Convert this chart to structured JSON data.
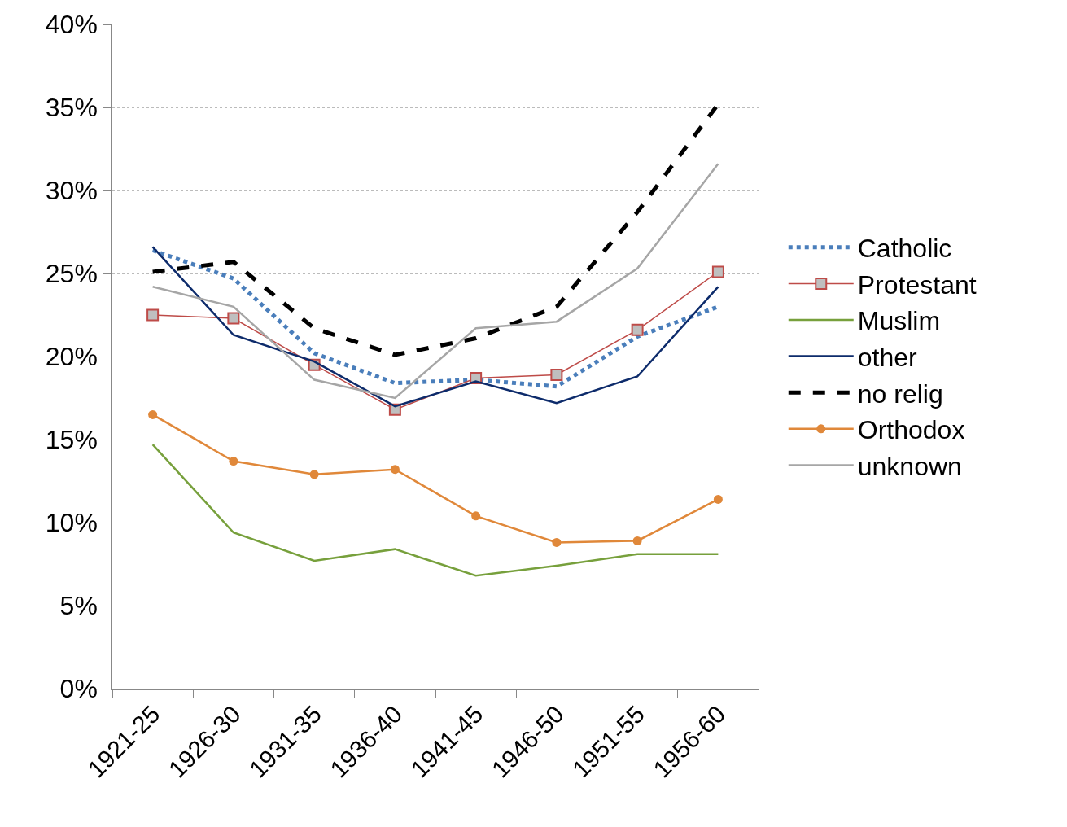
{
  "chart_data": {
    "type": "line",
    "categories": [
      "1921-25",
      "1926-30",
      "1931-35",
      "1936-40",
      "1941-45",
      "1946-50",
      "1951-55",
      "1956-60"
    ],
    "series": [
      {
        "name": "Catholic",
        "color": "#4a7ebb",
        "line_style": "dotted",
        "marker": "none",
        "values": [
          26.4,
          24.7,
          20.2,
          18.4,
          18.6,
          18.2,
          21.2,
          23.0
        ]
      },
      {
        "name": "Protestant",
        "color": "#be4b48",
        "line_style": "solid",
        "marker": "square",
        "values": [
          22.5,
          22.3,
          19.5,
          16.8,
          18.7,
          18.9,
          21.6,
          25.1
        ]
      },
      {
        "name": "Muslim",
        "color": "#77a03c",
        "line_style": "solid",
        "marker": "none",
        "values": [
          14.7,
          9.4,
          7.7,
          8.4,
          6.8,
          7.4,
          8.1,
          8.1
        ]
      },
      {
        "name": "other",
        "color": "#0d2b6b",
        "line_style": "solid",
        "marker": "none",
        "values": [
          26.6,
          21.3,
          19.7,
          17.0,
          18.5,
          17.2,
          18.8,
          24.2
        ]
      },
      {
        "name": "no relig",
        "color": "#000000",
        "line_style": "dashed",
        "marker": "none",
        "values": [
          25.1,
          25.7,
          21.7,
          20.1,
          21.1,
          23.0,
          28.7,
          35.2
        ]
      },
      {
        "name": "Orthodox",
        "color": "#e0883a",
        "line_style": "solid",
        "marker": "circle",
        "values": [
          16.5,
          13.7,
          12.9,
          13.2,
          10.4,
          8.8,
          8.9,
          11.4
        ]
      },
      {
        "name": "unknown",
        "color": "#a6a6a6",
        "line_style": "solid",
        "marker": "none",
        "values": [
          24.2,
          23.0,
          18.6,
          17.5,
          21.7,
          22.1,
          25.3,
          31.6
        ]
      }
    ],
    "ylim": [
      0,
      40
    ],
    "yticks": [
      {
        "value": 0,
        "label": "0%"
      },
      {
        "value": 5,
        "label": "5%"
      },
      {
        "value": 10,
        "label": "10%"
      },
      {
        "value": 15,
        "label": "15%"
      },
      {
        "value": 20,
        "label": "20%"
      },
      {
        "value": 25,
        "label": "25%"
      },
      {
        "value": 30,
        "label": "30%"
      },
      {
        "value": 35,
        "label": "35%"
      },
      {
        "value": 40,
        "label": "40%"
      }
    ],
    "grid": "y",
    "legend": "right"
  }
}
